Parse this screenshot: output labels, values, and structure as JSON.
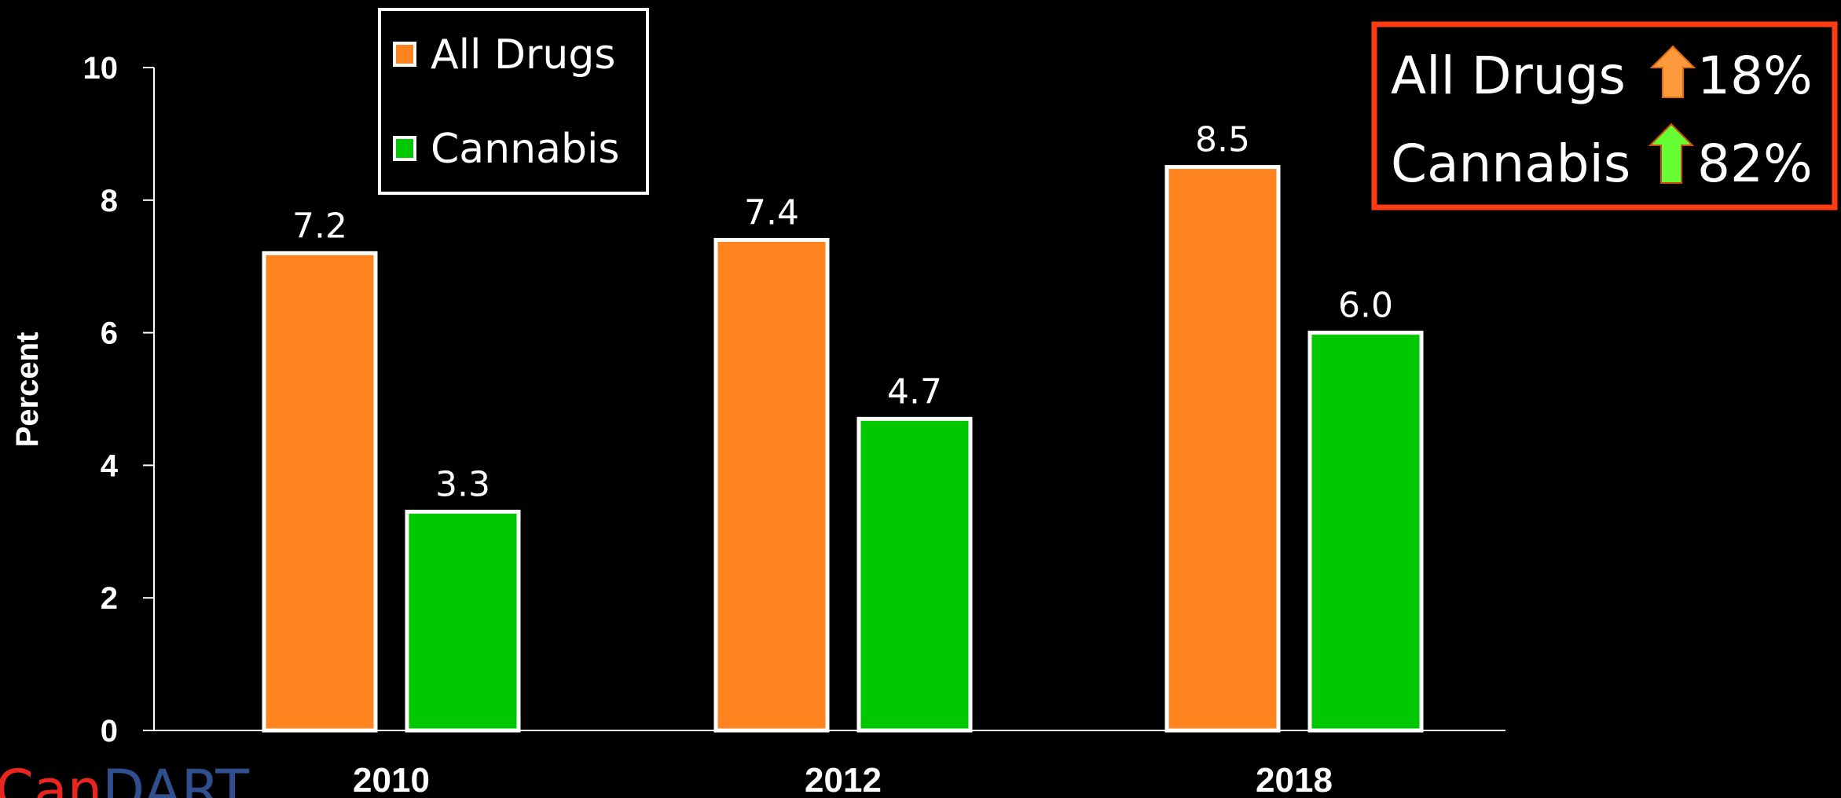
{
  "chart_data": {
    "type": "bar",
    "categories": [
      "2010",
      "2012",
      "2018"
    ],
    "series": [
      {
        "name": "All Drugs",
        "values": [
          7.2,
          7.4,
          8.5
        ],
        "labels": [
          "7.2",
          "7.4",
          "8.5"
        ],
        "color": "#ff8420"
      },
      {
        "name": "Cannabis",
        "values": [
          3.3,
          4.7,
          6.0
        ],
        "labels": [
          "3.3",
          "4.7",
          "6.0"
        ],
        "color": "#00c800"
      }
    ],
    "title": "",
    "xlabel": "",
    "ylabel": "Percent",
    "ylim": [
      0,
      10
    ],
    "yticks": [
      0,
      2,
      4,
      6,
      8,
      10
    ],
    "ytick_labels": [
      "0",
      "2",
      "4",
      "6",
      "8",
      "10"
    ],
    "grid": false,
    "legend_position": "top-center",
    "background": "#000000"
  },
  "callout": {
    "border_color": "#ff3b14",
    "rows": [
      {
        "label": "All Drugs",
        "value": "18%",
        "arrow_color": "#ff9a3c",
        "arrow_icon": "up-arrow-icon"
      },
      {
        "label": "Cannabis",
        "value": "82%",
        "arrow_color": "#66ff33",
        "arrow_icon": "up-arrow-icon"
      }
    ]
  },
  "logo": {
    "part1": "Can",
    "part2": "DART",
    "color1": "#e8251f",
    "color2": "#2f4f8f"
  }
}
